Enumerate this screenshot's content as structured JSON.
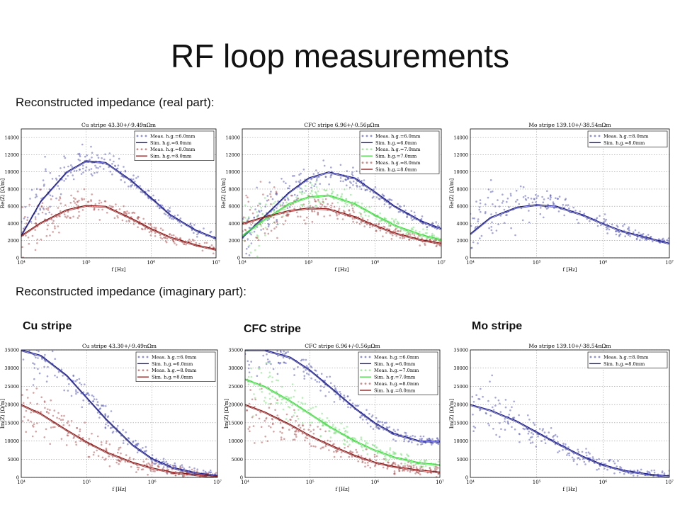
{
  "slide": {
    "title": "RF loop measurements",
    "real_heading": "Reconstructed impedance (real part):",
    "imag_heading": "Reconstructed impedance (imaginary part):",
    "stripe_labels": [
      "Cu stripe",
      "CFC stripe",
      "Mo stripe"
    ]
  },
  "colors": {
    "blue_meas": "#5b5fb8",
    "blue_sim": "#1a1a8a",
    "red_meas": "#b25858",
    "red_sim": "#8a1414",
    "green_meas": "#7fe07f",
    "green_sim": "#3fd83f"
  },
  "chart_data": [
    {
      "type": "scatter",
      "title": "Cu stripe 43.30+/-9.49nΩm",
      "xlabel": "f [Hz]",
      "ylabel": "Re(Z) [Ω/m]",
      "xscale": "log",
      "xlim": [
        10000,
        10000000
      ],
      "ylim": [
        0,
        15000
      ],
      "xticks": [
        "10⁴",
        "10⁵",
        "10⁶",
        "10⁷"
      ],
      "yticks": [
        0,
        2000,
        4000,
        6000,
        8000,
        10000,
        12000,
        14000
      ],
      "grid": true,
      "legend_position": "top-right",
      "series": [
        {
          "name": "Meas. h.g.=6.0mm",
          "kind": "meas",
          "color": "blue",
          "x": [
            10000,
            20000,
            50000,
            100000,
            200000,
            500000,
            1000000,
            2000000,
            5000000,
            10000000
          ],
          "y": [
            3000,
            6800,
            10000,
            11200,
            11000,
            9000,
            7000,
            5000,
            3200,
            2300
          ]
        },
        {
          "name": "Sim. h.g.=6.0mm",
          "kind": "sim",
          "color": "blue",
          "x": [
            10000,
            20000,
            50000,
            100000,
            200000,
            500000,
            1000000,
            2000000,
            5000000,
            10000000
          ],
          "y": [
            2600,
            6600,
            10000,
            11300,
            11100,
            9000,
            7000,
            5000,
            3200,
            2300
          ]
        },
        {
          "name": "Meas. h.g.=8.0mm",
          "kind": "meas",
          "color": "red",
          "x": [
            10000,
            20000,
            50000,
            100000,
            200000,
            500000,
            1000000,
            2000000,
            5000000,
            10000000
          ],
          "y": [
            2500,
            4200,
            5600,
            6200,
            6000,
            4600,
            3400,
            2400,
            1500,
            1000
          ]
        },
        {
          "name": "Sim. h.g.=8.0mm",
          "kind": "sim",
          "color": "red",
          "x": [
            10000,
            20000,
            50000,
            100000,
            200000,
            500000,
            1000000,
            2000000,
            5000000,
            10000000
          ],
          "y": [
            2600,
            4100,
            5600,
            6100,
            6000,
            4600,
            3400,
            2400,
            1500,
            1000
          ]
        }
      ]
    },
    {
      "type": "scatter",
      "title": "CFC stripe 6.96+/-0.56μΩm",
      "xlabel": "f [Hz]",
      "ylabel": "Re(Z) [Ω/m]",
      "xscale": "log",
      "xlim": [
        10000,
        10000000
      ],
      "ylim": [
        0,
        15000
      ],
      "xticks": [
        "10⁴",
        "10⁵",
        "10⁶",
        "10⁷"
      ],
      "yticks": [
        0,
        2000,
        4000,
        6000,
        8000,
        10000,
        12000,
        14000
      ],
      "grid": true,
      "legend_position": "top-right",
      "series": [
        {
          "name": "Meas. h.g.=6.0mm",
          "kind": "meas",
          "color": "blue",
          "x": [
            10000,
            20000,
            50000,
            100000,
            200000,
            500000,
            1000000,
            2000000,
            5000000,
            10000000
          ],
          "y": [
            2200,
            4500,
            7500,
            9200,
            10000,
            9200,
            7600,
            6000,
            4300,
            3400
          ]
        },
        {
          "name": "Sim. h.g.=6.0mm",
          "kind": "sim",
          "color": "blue",
          "x": [
            10000,
            20000,
            50000,
            100000,
            200000,
            500000,
            1000000,
            2000000,
            5000000,
            10000000
          ],
          "y": [
            2400,
            4600,
            7600,
            9300,
            10000,
            9300,
            7700,
            6000,
            4300,
            3400
          ]
        },
        {
          "name": "Meas. h.g.=7.0mm",
          "kind": "meas",
          "color": "green",
          "x": [
            10000,
            20000,
            50000,
            100000,
            200000,
            500000,
            1000000,
            2000000,
            5000000,
            10000000
          ],
          "y": [
            2400,
            4200,
            6300,
            7200,
            7400,
            6300,
            5000,
            3800,
            2700,
            2100
          ]
        },
        {
          "name": "Sim. h.g.=7.0mm",
          "kind": "sim",
          "color": "green",
          "x": [
            10000,
            20000,
            50000,
            100000,
            200000,
            500000,
            1000000,
            2000000,
            5000000,
            10000000
          ],
          "y": [
            2600,
            4300,
            6300,
            7100,
            7300,
            6300,
            5000,
            3800,
            2700,
            2100
          ]
        },
        {
          "name": "Meas. h.g.=8.0mm",
          "kind": "meas",
          "color": "red",
          "x": [
            10000,
            20000,
            50000,
            100000,
            200000,
            500000,
            1000000,
            2000000,
            5000000,
            10000000
          ],
          "y": [
            3800,
            4600,
            5400,
            5800,
            5700,
            4800,
            3800,
            2900,
            2100,
            1700
          ]
        },
        {
          "name": "Sim. h.g.=8.0mm",
          "kind": "sim",
          "color": "red",
          "x": [
            10000,
            20000,
            50000,
            100000,
            200000,
            500000,
            1000000,
            2000000,
            5000000,
            10000000
          ],
          "y": [
            4000,
            4700,
            5500,
            5800,
            5700,
            4800,
            3800,
            2900,
            2100,
            1700
          ]
        }
      ]
    },
    {
      "type": "scatter",
      "title": "Mo stripe 139.10+/-38.54nΩm",
      "xlabel": "f [Hz]",
      "ylabel": "Re(Z) [Ω/m]",
      "xscale": "log",
      "xlim": [
        10000,
        10000000
      ],
      "ylim": [
        0,
        15000
      ],
      "xticks": [
        "10⁴",
        "10⁵",
        "10⁶",
        "10⁷"
      ],
      "yticks": [
        0,
        2000,
        4000,
        6000,
        8000,
        10000,
        12000,
        14000
      ],
      "grid": true,
      "legend_position": "top-right",
      "series": [
        {
          "name": "Meas. h.g.=8.0mm",
          "kind": "meas",
          "color": "blue",
          "x": [
            10000,
            20000,
            50000,
            100000,
            200000,
            500000,
            1000000,
            2000000,
            5000000,
            10000000
          ],
          "y": [
            3000,
            4800,
            6000,
            6300,
            6100,
            5000,
            4000,
            3100,
            2300,
            1800
          ]
        },
        {
          "name": "Sim. h.g.=8.0mm",
          "kind": "sim",
          "color": "blue",
          "x": [
            10000,
            20000,
            50000,
            100000,
            200000,
            500000,
            1000000,
            2000000,
            5000000,
            10000000
          ],
          "y": [
            2800,
            4700,
            5900,
            6200,
            6000,
            5000,
            4000,
            3100,
            2300,
            1700
          ]
        }
      ]
    },
    {
      "type": "scatter",
      "title": "Cu stripe 43.30+/-9.49nΩm",
      "xlabel": "f [Hz]",
      "ylabel": "Im(Z) [Ω/m]",
      "xscale": "log",
      "xlim": [
        10000,
        10000000
      ],
      "ylim": [
        0,
        35000
      ],
      "xticks": [
        "10⁴",
        "10⁵",
        "10⁶",
        "10⁷"
      ],
      "yticks": [
        0,
        5000,
        10000,
        15000,
        20000,
        25000,
        30000,
        35000
      ],
      "grid": true,
      "legend_position": "top-right",
      "series": [
        {
          "name": "Meas. h.g.=6.0mm",
          "kind": "meas",
          "color": "blue",
          "x": [
            10000,
            20000,
            50000,
            100000,
            200000,
            500000,
            1000000,
            2000000,
            5000000,
            10000000
          ],
          "y": [
            35000,
            33500,
            28000,
            22000,
            16000,
            9000,
            5200,
            2800,
            1200,
            500
          ]
        },
        {
          "name": "Sim. h.g.=6.0mm",
          "kind": "sim",
          "color": "blue",
          "x": [
            10000,
            20000,
            50000,
            100000,
            200000,
            500000,
            1000000,
            2000000,
            5000000,
            10000000
          ],
          "y": [
            35000,
            33500,
            28000,
            22000,
            16000,
            9000,
            5200,
            2800,
            1200,
            500
          ]
        },
        {
          "name": "Meas. h.g.=8.0mm",
          "kind": "meas",
          "color": "red",
          "x": [
            10000,
            20000,
            50000,
            100000,
            200000,
            500000,
            1000000,
            2000000,
            5000000,
            10000000
          ],
          "y": [
            20000,
            17500,
            13000,
            9800,
            7000,
            4200,
            2600,
            1500,
            700,
            300
          ]
        },
        {
          "name": "Sim. h.g.=8.0mm",
          "kind": "sim",
          "color": "red",
          "x": [
            10000,
            20000,
            50000,
            100000,
            200000,
            500000,
            1000000,
            2000000,
            5000000,
            10000000
          ],
          "y": [
            20000,
            17500,
            13000,
            9800,
            7000,
            4200,
            2600,
            1500,
            700,
            300
          ]
        }
      ]
    },
    {
      "type": "scatter",
      "title": "CFC stripe 6.96+/-0.56μΩm",
      "xlabel": "f [Hz]",
      "ylabel": "Im(Z) [Ω/m]",
      "xscale": "log",
      "xlim": [
        10000,
        10000000
      ],
      "ylim": [
        0,
        35000
      ],
      "xticks": [
        "10⁴",
        "10⁵",
        "10⁶",
        "10⁷"
      ],
      "yticks": [
        0,
        5000,
        10000,
        15000,
        20000,
        25000,
        30000,
        35000
      ],
      "grid": true,
      "legend_position": "top-right",
      "series": [
        {
          "name": "Meas. h.g.=6.0mm",
          "kind": "meas",
          "color": "blue",
          "x": [
            10000,
            20000,
            50000,
            100000,
            200000,
            500000,
            1000000,
            2000000,
            5000000,
            10000000
          ],
          "y": [
            35000,
            35000,
            33000,
            29500,
            25000,
            19000,
            15000,
            12000,
            10000,
            10000
          ]
        },
        {
          "name": "Sim. h.g.=6.0mm",
          "kind": "sim",
          "color": "blue",
          "x": [
            10000,
            20000,
            50000,
            100000,
            200000,
            500000,
            1000000,
            2000000,
            5000000,
            10000000
          ],
          "y": [
            35000,
            35000,
            33000,
            29500,
            25000,
            19000,
            15000,
            12000,
            10000,
            10000
          ]
        },
        {
          "name": "Meas. h.g.=7.0mm",
          "kind": "meas",
          "color": "green",
          "x": [
            10000,
            20000,
            50000,
            100000,
            200000,
            500000,
            1000000,
            2000000,
            5000000,
            10000000
          ],
          "y": [
            27000,
            25000,
            21000,
            17500,
            14000,
            10000,
            7500,
            5600,
            4000,
            3500
          ]
        },
        {
          "name": "Sim. h.g.=7.0mm",
          "kind": "sim",
          "color": "green",
          "x": [
            10000,
            20000,
            50000,
            100000,
            200000,
            500000,
            1000000,
            2000000,
            5000000,
            10000000
          ],
          "y": [
            27000,
            25000,
            21000,
            17500,
            14000,
            10000,
            7500,
            5600,
            4000,
            3500
          ]
        },
        {
          "name": "Meas. h.g.=8.0mm",
          "kind": "meas",
          "color": "red",
          "x": [
            10000,
            20000,
            50000,
            100000,
            200000,
            500000,
            1000000,
            2000000,
            5000000,
            10000000
          ],
          "y": [
            20000,
            18000,
            14500,
            11500,
            9000,
            6000,
            4200,
            3000,
            2000,
            1500
          ]
        },
        {
          "name": "Sim. h.g.=8.0mm",
          "kind": "sim",
          "color": "red",
          "x": [
            10000,
            20000,
            50000,
            100000,
            200000,
            500000,
            1000000,
            2000000,
            5000000,
            10000000
          ],
          "y": [
            20000,
            18000,
            14500,
            11500,
            9000,
            6000,
            4200,
            3000,
            2000,
            1500
          ]
        }
      ]
    },
    {
      "type": "scatter",
      "title": "Mo stripe 139.10+/-38.54nΩm",
      "xlabel": "f [Hz]",
      "ylabel": "Im(Z) [Ω/m]",
      "xscale": "log",
      "xlim": [
        10000,
        10000000
      ],
      "ylim": [
        0,
        35000
      ],
      "xticks": [
        "10⁴",
        "10⁵",
        "10⁶",
        "10⁷"
      ],
      "yticks": [
        0,
        5000,
        10000,
        15000,
        20000,
        25000,
        30000,
        35000
      ],
      "grid": true,
      "legend_position": "top-right",
      "series": [
        {
          "name": "Meas. h.g.=8.0mm",
          "kind": "meas",
          "color": "blue",
          "x": [
            10000,
            20000,
            50000,
            100000,
            200000,
            500000,
            1000000,
            2000000,
            5000000,
            10000000
          ],
          "y": [
            20000,
            18500,
            15500,
            12500,
            9500,
            5800,
            3500,
            2000,
            900,
            400
          ]
        },
        {
          "name": "Sim. h.g.=8.0mm",
          "kind": "sim",
          "color": "blue",
          "x": [
            10000,
            20000,
            50000,
            100000,
            200000,
            500000,
            1000000,
            2000000,
            5000000,
            10000000
          ],
          "y": [
            20000,
            18500,
            15500,
            12500,
            9500,
            5800,
            3500,
            2000,
            900,
            400
          ]
        }
      ]
    }
  ]
}
